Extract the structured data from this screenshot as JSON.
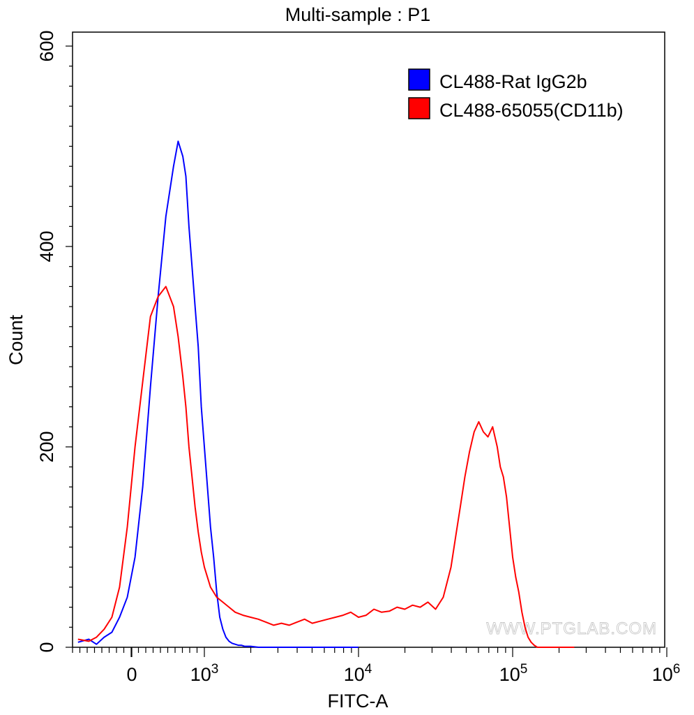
{
  "chart_data": {
    "type": "line",
    "title": "Multi-sample : P1",
    "xlabel": "FITC-A",
    "ylabel": "Count",
    "yticks": [
      {
        "value": 0,
        "label": "0"
      },
      {
        "value": 200,
        "label": "200"
      },
      {
        "value": 400,
        "label": "400"
      },
      {
        "value": 600,
        "label": "600"
      }
    ],
    "xticks": [
      {
        "label": "0",
        "sup": ""
      },
      {
        "label": "10",
        "sup": "3"
      },
      {
        "label": "10",
        "sup": "4"
      },
      {
        "label": "10",
        "sup": "5"
      },
      {
        "label": "10",
        "sup": "6"
      }
    ],
    "x_scale": "biexponential (decades shown at 0, 10^3, 10^4, 10^5, 10^6)",
    "ylim": [
      0,
      620
    ],
    "legend": {
      "position": "top-right"
    },
    "series": [
      {
        "name": "CL488-Rat IgG2b",
        "color": "#0000ff",
        "x_axis_units": "decades from 10^3 (0 = 10^3, 1 = 10^4, 2 = 10^5, 3 = 10^6; negatives = linear region down to 0)",
        "x": [
          -0.82,
          -0.75,
          -0.7,
          -0.65,
          -0.6,
          -0.55,
          -0.5,
          -0.45,
          -0.4,
          -0.35,
          -0.3,
          -0.25,
          -0.2,
          -0.17,
          -0.14,
          -0.12,
          -0.1,
          -0.08,
          -0.06,
          -0.04,
          -0.02,
          0.0,
          0.02,
          0.04,
          0.06,
          0.08,
          0.1,
          0.12,
          0.14,
          0.16,
          0.18,
          0.2,
          0.22,
          0.24,
          0.26,
          0.28,
          0.3,
          0.35,
          0.4,
          0.5,
          0.6,
          0.8,
          1.0
        ],
        "values": [
          5,
          8,
          3,
          10,
          15,
          30,
          50,
          90,
          160,
          260,
          350,
          430,
          480,
          505,
          490,
          470,
          420,
          380,
          340,
          300,
          240,
          200,
          160,
          120,
          90,
          55,
          30,
          18,
          10,
          6,
          4,
          3,
          2,
          2,
          1,
          1,
          1,
          0,
          0,
          0,
          0,
          0,
          0
        ]
      },
      {
        "name": "CL488-65055(CD11b)",
        "color": "#ff0000",
        "x_axis_units": "decades from 10^3 (0 = 10^3, 1 = 10^4, 2 = 10^5, 3 = 10^6; negatives = linear region down to 0)",
        "x": [
          -0.82,
          -0.75,
          -0.7,
          -0.65,
          -0.6,
          -0.55,
          -0.5,
          -0.45,
          -0.4,
          -0.35,
          -0.3,
          -0.25,
          -0.2,
          -0.17,
          -0.14,
          -0.12,
          -0.1,
          -0.08,
          -0.06,
          -0.04,
          -0.02,
          0.0,
          0.04,
          0.08,
          0.12,
          0.16,
          0.2,
          0.25,
          0.3,
          0.35,
          0.4,
          0.45,
          0.5,
          0.55,
          0.6,
          0.65,
          0.7,
          0.75,
          0.8,
          0.85,
          0.9,
          0.95,
          1.0,
          1.05,
          1.1,
          1.15,
          1.2,
          1.25,
          1.3,
          1.35,
          1.4,
          1.45,
          1.5,
          1.55,
          1.6,
          1.63,
          1.66,
          1.69,
          1.72,
          1.75,
          1.78,
          1.81,
          1.84,
          1.87,
          1.9,
          1.92,
          1.94,
          1.96,
          1.98,
          2.0,
          2.02,
          2.04,
          2.06,
          2.08,
          2.1,
          2.12,
          2.14,
          2.16,
          2.18,
          2.2,
          2.22,
          2.24,
          2.26,
          2.28,
          2.3,
          2.35,
          2.4
        ],
        "values": [
          8,
          6,
          10,
          18,
          30,
          60,
          120,
          200,
          265,
          330,
          350,
          360,
          340,
          310,
          270,
          240,
          200,
          170,
          140,
          115,
          95,
          80,
          60,
          50,
          45,
          40,
          35,
          32,
          30,
          28,
          25,
          22,
          24,
          22,
          25,
          28,
          24,
          26,
          28,
          30,
          32,
          35,
          30,
          32,
          38,
          35,
          36,
          40,
          38,
          42,
          40,
          45,
          38,
          50,
          80,
          110,
          140,
          170,
          195,
          215,
          225,
          215,
          210,
          220,
          200,
          180,
          170,
          150,
          120,
          90,
          70,
          55,
          35,
          20,
          10,
          5,
          2,
          0,
          0,
          0,
          0,
          0,
          0,
          0,
          0,
          0,
          0
        ]
      }
    ]
  },
  "watermark": "WWW.PTGLAB.COM"
}
